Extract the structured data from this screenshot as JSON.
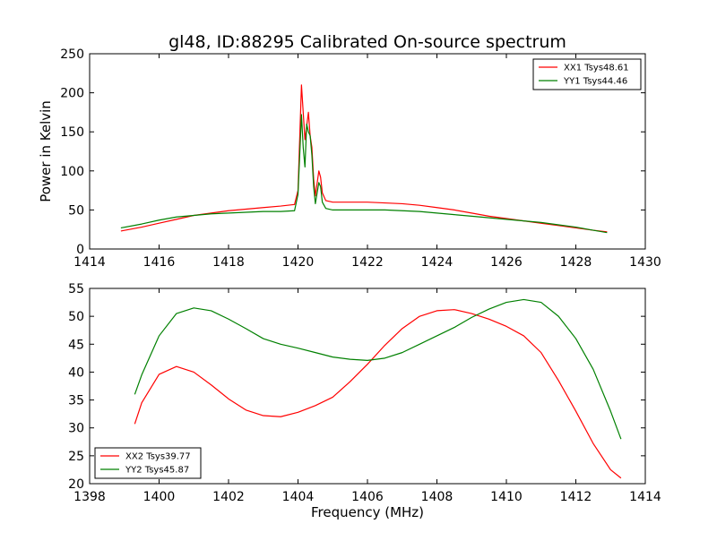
{
  "figure": {
    "title": "gl48, ID:88295 Calibrated On-source spectrum",
    "xlabel": "Frequency (MHz)"
  },
  "colors": {
    "xx": "#ff0000",
    "yy": "#008000",
    "axes": "#000000",
    "background": "#ffffff"
  },
  "chart_data": [
    {
      "type": "line",
      "title": "gl48, ID:88295 Calibrated On-source spectrum",
      "xlabel": "",
      "ylabel": "Power in Kelvin",
      "xlim": [
        1414,
        1430
      ],
      "ylim": [
        0,
        250
      ],
      "xticks": [
        1414,
        1416,
        1418,
        1420,
        1422,
        1424,
        1426,
        1428,
        1430
      ],
      "yticks": [
        0,
        50,
        100,
        150,
        200,
        250
      ],
      "grid": false,
      "legend_position": "top-right",
      "series": [
        {
          "name": "XX1 Tsys48.61",
          "color": "#ff0000",
          "x": [
            1414.9,
            1415.5,
            1416.0,
            1416.5,
            1417.0,
            1417.5,
            1418.0,
            1418.5,
            1419.0,
            1419.5,
            1419.9,
            1420.0,
            1420.1,
            1420.2,
            1420.3,
            1420.35,
            1420.4,
            1420.45,
            1420.5,
            1420.6,
            1420.65,
            1420.7,
            1420.8,
            1421.0,
            1421.5,
            1422.0,
            1422.5,
            1423.0,
            1423.5,
            1424.0,
            1424.5,
            1425.0,
            1425.5,
            1426.0,
            1426.5,
            1427.0,
            1427.5,
            1428.0,
            1428.5,
            1428.9
          ],
          "y": [
            23,
            28,
            33,
            38,
            43,
            46,
            49,
            51,
            53,
            55,
            57,
            75,
            210,
            140,
            175,
            145,
            130,
            90,
            68,
            100,
            92,
            72,
            62,
            60,
            60,
            60,
            59,
            58,
            56,
            53,
            50,
            46,
            42,
            39,
            36,
            33,
            30,
            27,
            24,
            22
          ]
        },
        {
          "name": "YY1 Tsys44.46",
          "color": "#008000",
          "x": [
            1414.9,
            1415.5,
            1416.0,
            1416.5,
            1417.0,
            1417.5,
            1418.0,
            1418.5,
            1419.0,
            1419.5,
            1419.9,
            1420.0,
            1420.1,
            1420.15,
            1420.2,
            1420.25,
            1420.3,
            1420.35,
            1420.4,
            1420.45,
            1420.5,
            1420.6,
            1420.65,
            1420.7,
            1420.8,
            1421.0,
            1421.5,
            1422.0,
            1422.5,
            1423.0,
            1423.5,
            1424.0,
            1424.5,
            1425.0,
            1425.5,
            1426.0,
            1426.5,
            1427.0,
            1427.5,
            1428.0,
            1428.5,
            1428.9
          ],
          "y": [
            27,
            32,
            37,
            41,
            43,
            45,
            46,
            47,
            48,
            48,
            49,
            70,
            172,
            130,
            105,
            160,
            150,
            145,
            120,
            80,
            58,
            85,
            80,
            60,
            52,
            50,
            50,
            50,
            50,
            49,
            48,
            46,
            44,
            42,
            40,
            38,
            36,
            34,
            31,
            28,
            24,
            21
          ]
        }
      ]
    },
    {
      "type": "line",
      "title": "",
      "xlabel": "Frequency (MHz)",
      "ylabel": "",
      "xlim": [
        1398,
        1414
      ],
      "ylim": [
        20,
        55
      ],
      "xticks": [
        1398,
        1400,
        1402,
        1404,
        1406,
        1408,
        1410,
        1412,
        1414
      ],
      "yticks": [
        20,
        25,
        30,
        35,
        40,
        45,
        50,
        55
      ],
      "grid": false,
      "legend_position": "bottom-left",
      "series": [
        {
          "name": "XX2 Tsys39.77",
          "color": "#ff0000",
          "x": [
            1399.3,
            1399.5,
            1400.0,
            1400.5,
            1401.0,
            1401.5,
            1402.0,
            1402.5,
            1403.0,
            1403.5,
            1404.0,
            1404.5,
            1405.0,
            1405.5,
            1406.0,
            1406.5,
            1407.0,
            1407.5,
            1408.0,
            1408.5,
            1409.0,
            1409.5,
            1410.0,
            1410.5,
            1411.0,
            1411.5,
            1412.0,
            1412.5,
            1413.0,
            1413.3
          ],
          "y": [
            30.7,
            34.5,
            39.6,
            41.0,
            40.0,
            37.7,
            35.2,
            33.2,
            32.2,
            32.0,
            32.8,
            34.0,
            35.5,
            38.3,
            41.4,
            44.8,
            47.8,
            50.0,
            51.0,
            51.2,
            50.5,
            49.5,
            48.2,
            46.5,
            43.5,
            38.5,
            33.0,
            27.2,
            22.5,
            21.0
          ]
        },
        {
          "name": "YY2 Tsys45.87",
          "color": "#008000",
          "x": [
            1399.3,
            1399.5,
            1400.0,
            1400.5,
            1401.0,
            1401.5,
            1402.0,
            1402.5,
            1403.0,
            1403.5,
            1404.0,
            1404.5,
            1405.0,
            1405.5,
            1406.0,
            1406.5,
            1407.0,
            1407.5,
            1408.0,
            1408.5,
            1409.0,
            1409.5,
            1410.0,
            1410.5,
            1411.0,
            1411.5,
            1412.0,
            1412.5,
            1413.0,
            1413.3
          ],
          "y": [
            36.0,
            39.5,
            46.5,
            50.5,
            51.5,
            51.0,
            49.5,
            47.8,
            46.0,
            45.0,
            44.3,
            43.5,
            42.7,
            42.3,
            42.1,
            42.5,
            43.5,
            45.0,
            46.5,
            48.0,
            49.8,
            51.3,
            52.5,
            53.0,
            52.5,
            50.0,
            46.0,
            40.5,
            33.0,
            28.0
          ]
        }
      ]
    }
  ]
}
